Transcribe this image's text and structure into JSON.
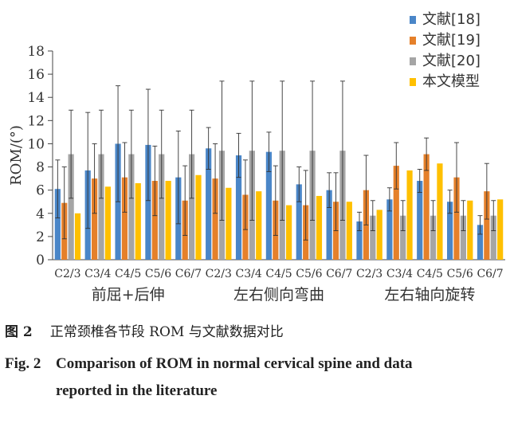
{
  "chart_data": {
    "type": "bar",
    "ylabel": "ROM/(°)",
    "ylim": [
      0,
      18
    ],
    "yticks": [
      0,
      2,
      4,
      6,
      8,
      10,
      12,
      14,
      16,
      18
    ],
    "groups": [
      {
        "label": "前屈+后伸",
        "categories": [
          "C2/3",
          "C3/4",
          "C4/5",
          "C5/6",
          "C6/7"
        ]
      },
      {
        "label": "左右侧向弯曲",
        "categories": [
          "C2/3",
          "C3/4",
          "C4/5",
          "C5/6",
          "C6/7"
        ]
      },
      {
        "label": "左右轴向旋转",
        "categories": [
          "C2/3",
          "C3/4",
          "C4/5",
          "C5/6",
          "C6/7"
        ]
      }
    ],
    "series": [
      {
        "name": "文献[18]",
        "color": "#4a86c8",
        "values": [
          6.1,
          7.7,
          10.0,
          9.9,
          7.1,
          9.6,
          9.0,
          9.3,
          6.5,
          6.0,
          3.3,
          5.2,
          6.8,
          5.0,
          3.0
        ],
        "errors": [
          2.5,
          5.0,
          5.0,
          4.8,
          4.0,
          1.8,
          1.9,
          1.7,
          1.5,
          1.5,
          0.8,
          1.0,
          1.0,
          1.0,
          0.8
        ]
      },
      {
        "name": "文献[19]",
        "color": "#e5802a",
        "values": [
          4.9,
          7.0,
          7.1,
          6.8,
          5.1,
          7.0,
          5.6,
          5.1,
          4.7,
          5.0,
          6.0,
          8.1,
          9.1,
          7.1,
          5.9
        ],
        "errors": [
          3.1,
          3.0,
          3.0,
          3.0,
          3.0,
          3.0,
          3.0,
          3.0,
          3.0,
          2.5,
          3.0,
          2.0,
          1.4,
          3.0,
          2.4
        ]
      },
      {
        "name": "文献[20]",
        "color": "#a5a5a5",
        "values": [
          9.1,
          9.1,
          9.1,
          9.1,
          9.1,
          9.4,
          9.4,
          9.4,
          9.4,
          9.4,
          3.8,
          3.8,
          3.8,
          3.8,
          3.8
        ],
        "errors": [
          3.8,
          3.8,
          3.8,
          3.8,
          3.8,
          6.0,
          6.0,
          6.0,
          6.0,
          6.0,
          1.3,
          1.3,
          1.3,
          1.3,
          1.3
        ]
      },
      {
        "name": "本文模型",
        "color": "#ffc000",
        "values": [
          4.0,
          6.3,
          6.6,
          6.8,
          7.3,
          6.2,
          5.9,
          4.7,
          5.5,
          5.0,
          4.3,
          7.7,
          8.3,
          5.1,
          5.2
        ],
        "errors": null
      }
    ],
    "legend_position": "top-right"
  },
  "caption": {
    "cn_label": "图 2",
    "cn_text": "正常颈椎各节段 ROM 与文献数据对比",
    "en_label": "Fig. 2",
    "en_line1": "Comparison of ROM in normal cervical spine and data",
    "en_line2": "reported in the literature"
  }
}
